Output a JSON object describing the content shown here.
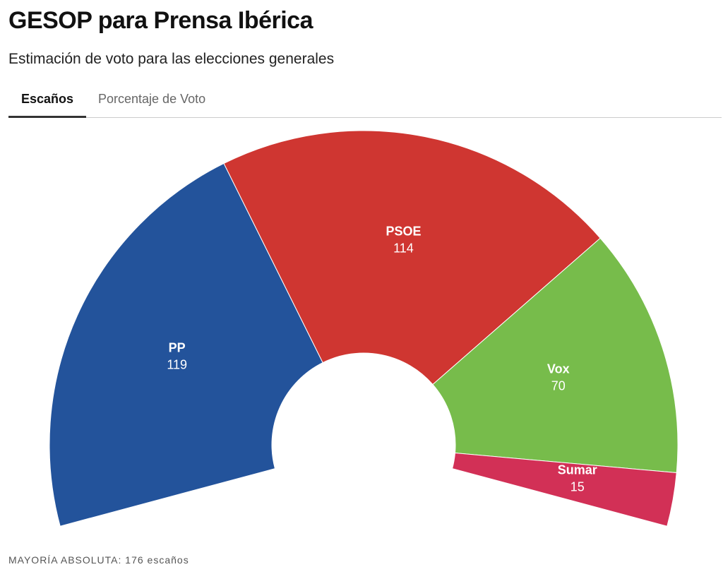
{
  "tabs": [
    "Escaños",
    "Porcentaje de Voto"
  ],
  "chart_data": {
    "type": "pie",
    "title": "GESOP para Prensa Ibérica",
    "subtitle": "Estimación de voto para las elecciones generales",
    "categories": [
      "PP",
      "PSOE",
      "Vox",
      "Sumar"
    ],
    "values": [
      119,
      114,
      70,
      15
    ],
    "colors": [
      "#23539b",
      "#cf3631",
      "#77bc4b",
      "#d23056"
    ],
    "note": "MAYORÍA ABSOLUTA: 176 escaños"
  }
}
